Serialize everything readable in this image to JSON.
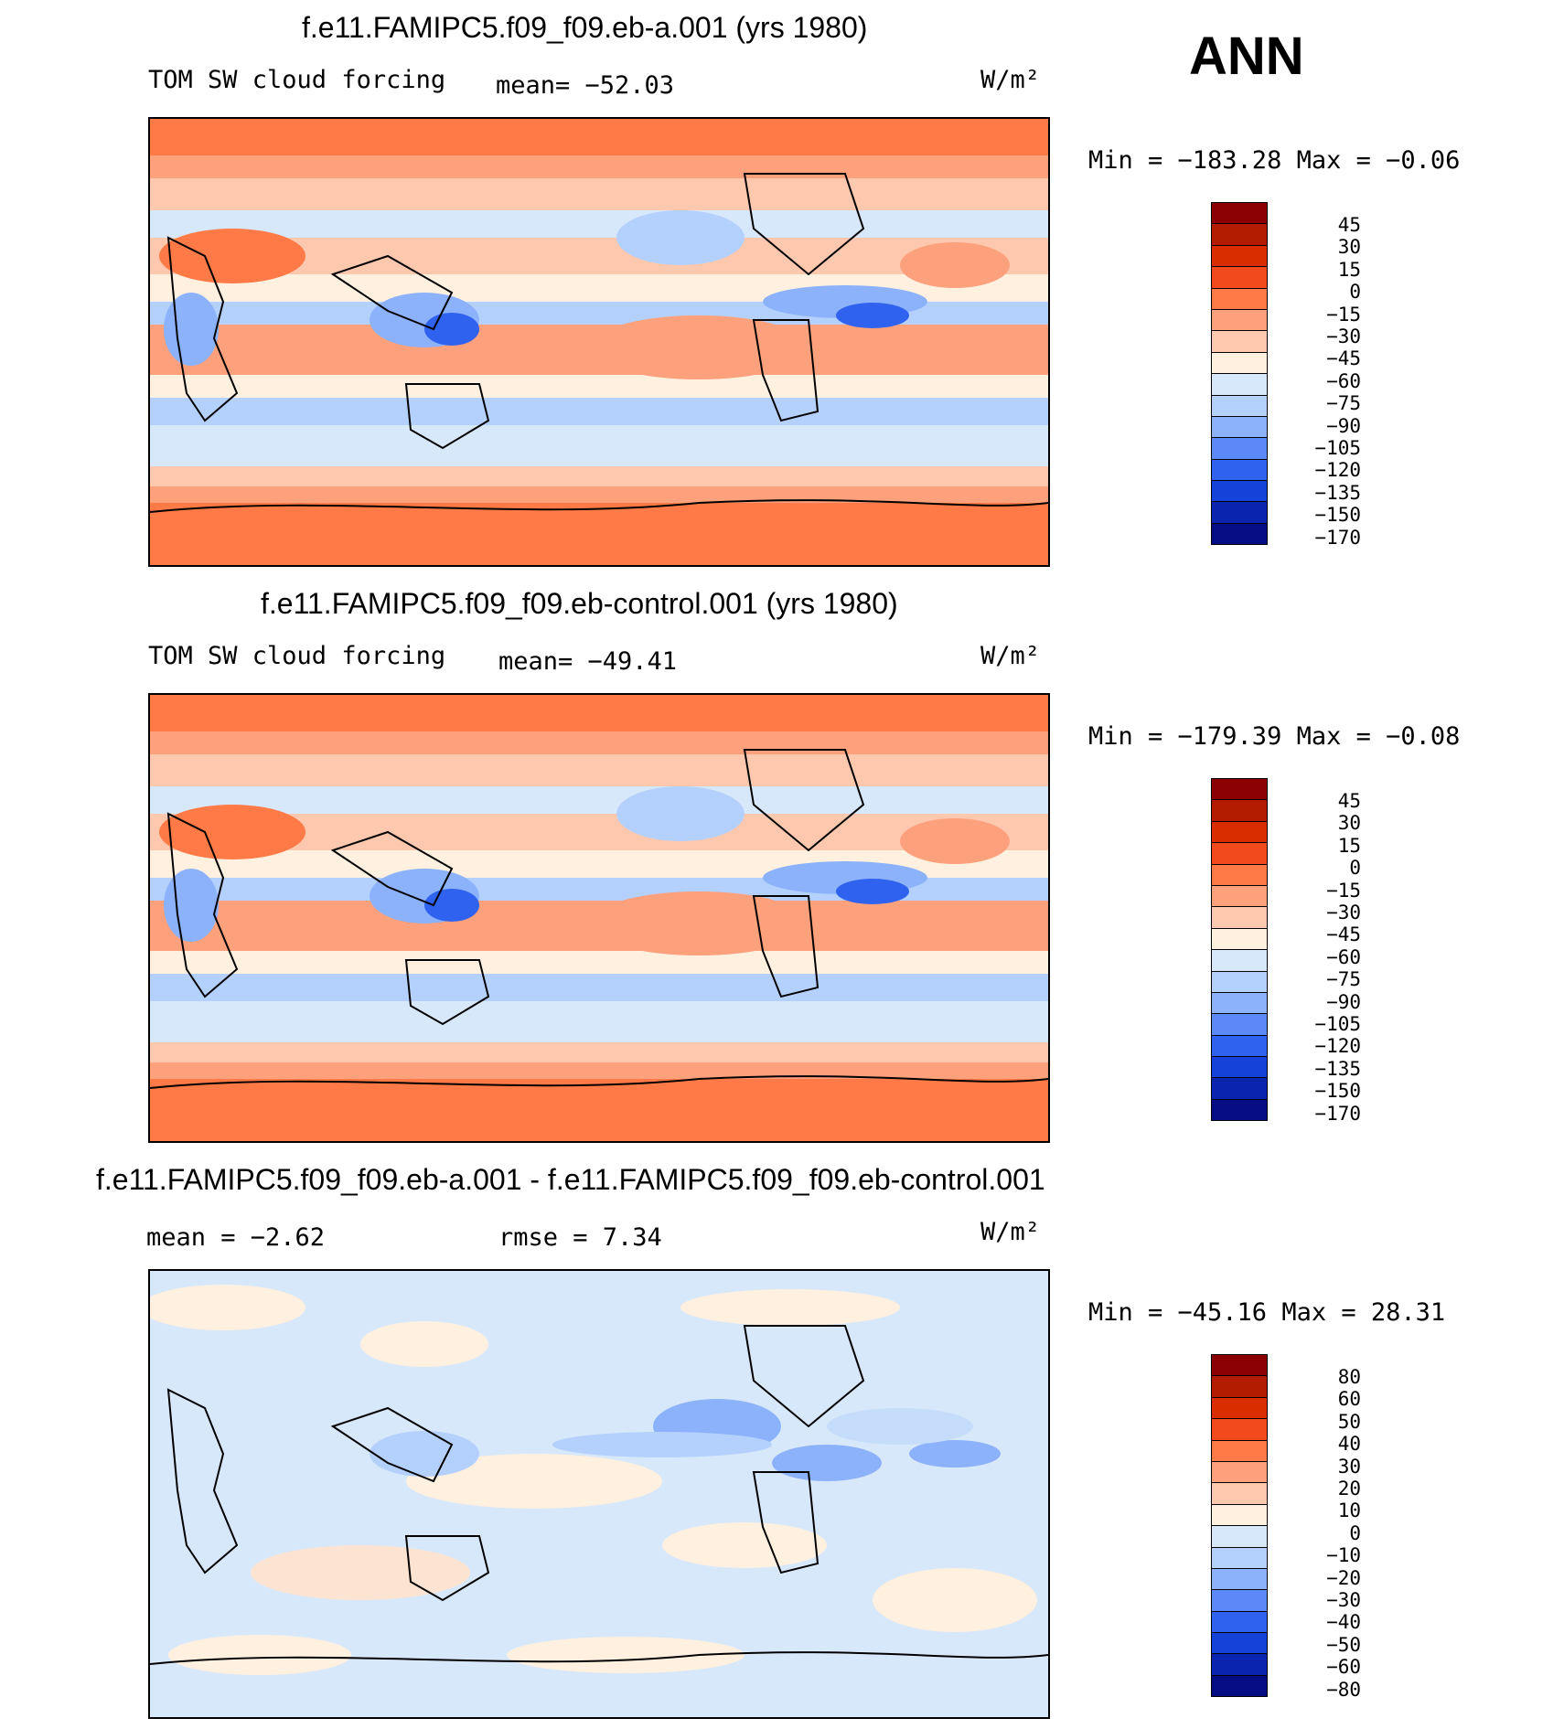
{
  "season": "ANN",
  "units": "W/m²",
  "panels": [
    {
      "title": "f.e11.FAMIPC5.f09_f09.eb-a.001 (yrs 1980)",
      "variable": "TOM SW cloud forcing",
      "mean_text": "mean= −52.03",
      "minmax_text": "Min = −183.28 Max =  −0.06",
      "colorbar": {
        "labels": [
          "45",
          "30",
          "15",
          "0",
          "−15",
          "−30",
          "−45",
          "−60",
          "−75",
          "−90",
          "−105",
          "−120",
          "−135",
          "−150",
          "−170"
        ],
        "colors": [
          "#8b0000",
          "#b31b00",
          "#d92d00",
          "#f24a1d",
          "#ff7a47",
          "#fda07c",
          "#fdc8ae",
          "#fff0df",
          "#d8e8fb",
          "#b4d0fc",
          "#8cb2fb",
          "#5b8af8",
          "#2f62ef",
          "#1542d8",
          "#0b24b0",
          "#040d84"
        ]
      },
      "map_fill": [
        "#ff7a47",
        "#fda07c",
        "#fdc8ae",
        "#fff0df",
        "#d8e8fb",
        "#b4d0fc",
        "#8cb2fb",
        "#5b8af8",
        "#2f62ef",
        "#1542d8"
      ]
    },
    {
      "title": "f.e11.FAMIPC5.f09_f09.eb-control.001 (yrs 1980)",
      "variable": "TOM SW cloud forcing",
      "mean_text": "mean= −49.41",
      "minmax_text": "Min = −179.39 Max =  −0.08",
      "colorbar": {
        "labels": [
          "45",
          "30",
          "15",
          "0",
          "−15",
          "−30",
          "−45",
          "−60",
          "−75",
          "−90",
          "−105",
          "−120",
          "−135",
          "−150",
          "−170"
        ],
        "colors": [
          "#8b0000",
          "#b31b00",
          "#d92d00",
          "#f24a1d",
          "#ff7a47",
          "#fda07c",
          "#fdc8ae",
          "#fff0df",
          "#d8e8fb",
          "#b4d0fc",
          "#8cb2fb",
          "#5b8af8",
          "#2f62ef",
          "#1542d8",
          "#0b24b0",
          "#040d84"
        ]
      },
      "map_fill": [
        "#ff7a47",
        "#fda07c",
        "#fdc8ae",
        "#fff0df",
        "#d8e8fb",
        "#b4d0fc",
        "#8cb2fb",
        "#5b8af8",
        "#2f62ef",
        "#1542d8"
      ]
    },
    {
      "title": "f.e11.FAMIPC5.f09_f09.eb-a.001 - f.e11.FAMIPC5.f09_f09.eb-control.001",
      "mean_text": "mean =   −2.62",
      "rmse_text": "rmse =    7.34",
      "minmax_text": "Min = −45.16 Max =  28.31",
      "colorbar": {
        "labels": [
          "80",
          "60",
          "50",
          "40",
          "30",
          "20",
          "10",
          "0",
          "−10",
          "−20",
          "−30",
          "−40",
          "−50",
          "−60",
          "−80"
        ],
        "colors": [
          "#8b0000",
          "#b31b00",
          "#d92d00",
          "#f24a1d",
          "#ff7a47",
          "#fda07c",
          "#fdc8ae",
          "#fff0df",
          "#d8e8fb",
          "#b4d0fc",
          "#8cb2fb",
          "#5b8af8",
          "#2f62ef",
          "#1542d8",
          "#0b24b0",
          "#040d84"
        ]
      },
      "map_fill": [
        "#fff0df",
        "#fde4d2",
        "#d8e8fb",
        "#c5dcfb",
        "#b4d0fc",
        "#8cb2fb",
        "#5b8af8"
      ]
    }
  ]
}
